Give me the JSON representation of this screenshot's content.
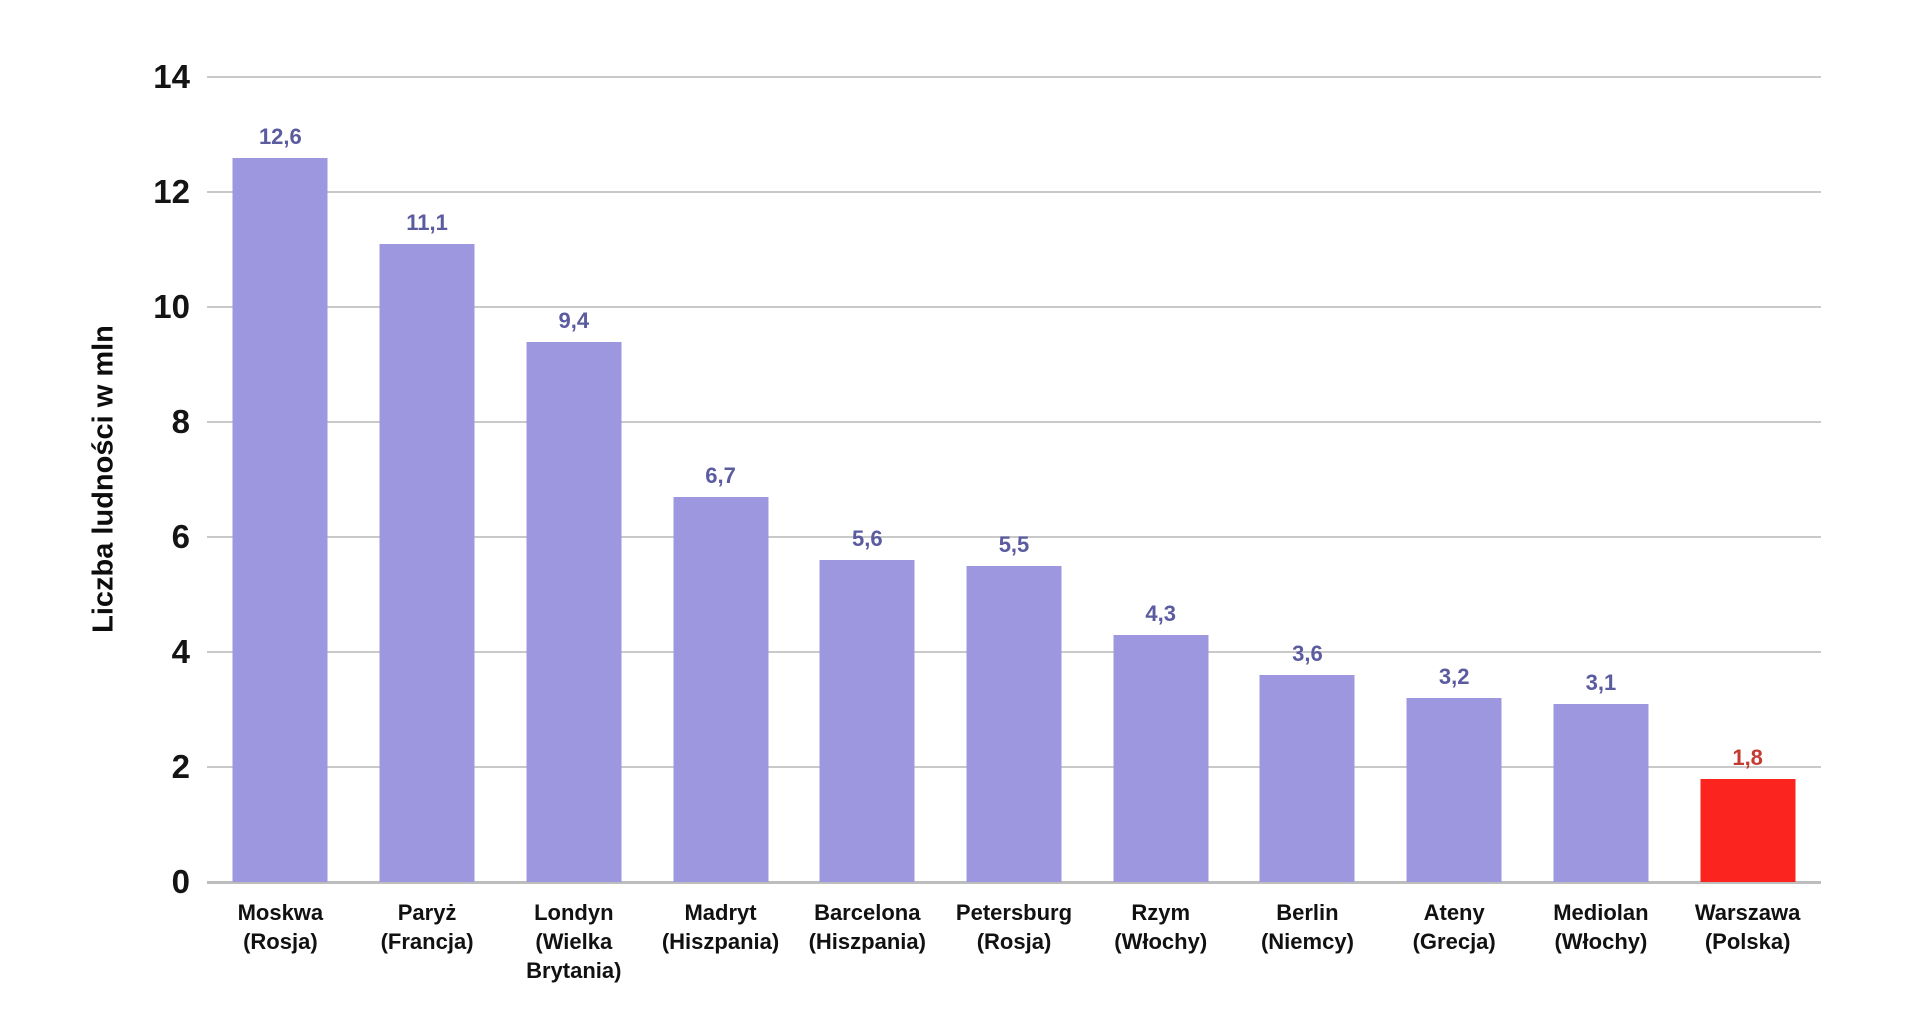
{
  "chart_data": {
    "type": "bar",
    "title": "",
    "xlabel": "",
    "ylabel": "Liczba ludności w mln",
    "ylim": [
      0,
      14
    ],
    "yticks": [
      0,
      2,
      4,
      6,
      8,
      10,
      12,
      14
    ],
    "grid": true,
    "legend_position": "none",
    "categories": [
      "Moskwa\n(Rosja)",
      "Paryż\n(Francja)",
      "Londyn\n(Wielka\nBrytania)",
      "Madryt\n(Hiszpania)",
      "Barcelona\n(Hiszpania)",
      "Petersburg\n(Rosja)",
      "Rzym\n(Włochy)",
      "Berlin\n(Niemcy)",
      "Ateny\n(Grecja)",
      "Mediolan\n(Włochy)",
      "Warszawa\n(Polska)"
    ],
    "values": [
      12.6,
      11.1,
      9.4,
      6.7,
      5.6,
      5.5,
      4.3,
      3.6,
      3.2,
      3.1,
      1.8
    ],
    "value_labels": [
      "12,6",
      "11,1",
      "9,4",
      "6,7",
      "5,6",
      "5,5",
      "4,3",
      "3,6",
      "3,2",
      "3,1",
      "1,8"
    ],
    "highlight_index": 10,
    "colors": {
      "bar_default": "#9c97df",
      "bar_highlight": "#fc241f",
      "value_label_default": "#5b5b9f",
      "value_label_highlight": "#c53a30",
      "gridline": "#c9c9c9",
      "axis_line": "#bdbdbd",
      "tick_label": "#141414",
      "category_label": "#111111"
    }
  }
}
